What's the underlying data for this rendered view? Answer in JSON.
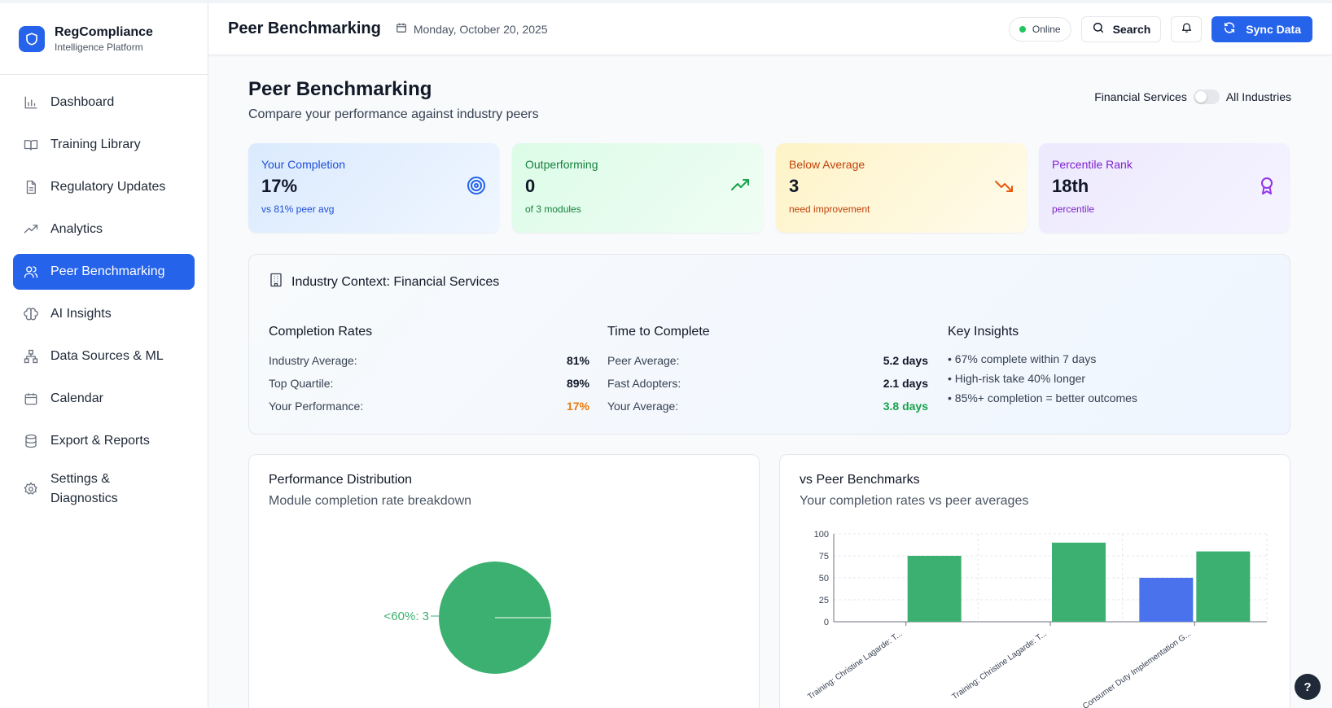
{
  "brand": {
    "title": "RegCompliance",
    "subtitle": "Intelligence Platform"
  },
  "sidebar": {
    "items": [
      {
        "label": "Dashboard",
        "icon": "bar-chart-icon"
      },
      {
        "label": "Training Library",
        "icon": "book-icon"
      },
      {
        "label": "Regulatory Updates",
        "icon": "document-icon"
      },
      {
        "label": "Analytics",
        "icon": "trend-icon"
      },
      {
        "label": "Peer Benchmarking",
        "icon": "users-icon",
        "active": true
      },
      {
        "label": "AI Insights",
        "icon": "brain-icon"
      },
      {
        "label": "Data Sources & ML",
        "icon": "network-icon"
      },
      {
        "label": "Calendar",
        "icon": "calendar-icon"
      },
      {
        "label": "Export & Reports",
        "icon": "database-icon"
      },
      {
        "label": "Settings & Diagnostics",
        "icon": "gear-icon"
      }
    ]
  },
  "header": {
    "title": "Peer Benchmarking",
    "date": "Monday, October 20, 2025",
    "status": "Online",
    "search_label": "Search",
    "sync_label": "Sync Data"
  },
  "page": {
    "title": "Peer Benchmarking",
    "subtitle": "Compare your performance against industry peers",
    "toggle_left": "Financial Services",
    "toggle_right": "All Industries"
  },
  "stats": [
    {
      "label": "Your Completion",
      "value": "17%",
      "note": "vs 81% peer avg",
      "icon": "target-icon"
    },
    {
      "label": "Outperforming",
      "value": "0",
      "note": "of 3 modules",
      "icon": "trending-up-icon"
    },
    {
      "label": "Below Average",
      "value": "3",
      "note": "need improvement",
      "icon": "trending-down-icon"
    },
    {
      "label": "Percentile Rank",
      "value": "18th",
      "note": "percentile",
      "icon": "award-icon"
    }
  ],
  "context": {
    "title": "Industry Context: Financial Services",
    "completion": {
      "heading": "Completion Rates",
      "rows": [
        {
          "label": "Industry Average:",
          "value": "81%"
        },
        {
          "label": "Top Quartile:",
          "value": "89%"
        },
        {
          "label": "Your Performance:",
          "value": "17%"
        }
      ]
    },
    "time": {
      "heading": "Time to Complete",
      "rows": [
        {
          "label": "Peer Average:",
          "value": "5.2 days"
        },
        {
          "label": "Fast Adopters:",
          "value": "2.1 days"
        },
        {
          "label": "Your Average:",
          "value": "3.8 days"
        }
      ]
    },
    "insights": {
      "heading": "Key Insights",
      "items": [
        "• 67% complete within 7 days",
        "• High-risk take 40% longer",
        "• 85%+ completion = better outcomes"
      ]
    }
  },
  "pie_card": {
    "title": "Performance Distribution",
    "subtitle": "Module completion rate breakdown"
  },
  "bar_card": {
    "title": "vs Peer Benchmarks",
    "subtitle": "Your completion rates vs peer averages"
  },
  "colors": {
    "accent": "#2563eb",
    "peer": "#3cb070",
    "yours": "#4a72ec"
  },
  "chart_data": [
    {
      "type": "pie",
      "slices": [
        {
          "label": "<60%",
          "value": 3,
          "display": "<60%: 3",
          "color": "#3cb070"
        }
      ]
    },
    {
      "type": "bar",
      "categories": [
        "Training: Christine Lagarde: T...",
        "Training: Christine Lagarde: T...",
        "Consumer Duty Implementation G..."
      ],
      "series": [
        {
          "values": [
            0,
            0,
            50
          ],
          "color": "#4a72ec"
        },
        {
          "values": [
            75,
            90,
            80
          ],
          "color": "#3cb070"
        }
      ],
      "ylim": [
        0,
        100
      ],
      "yticks": [
        "0",
        "25",
        "50",
        "75",
        "100"
      ],
      "grid": true
    }
  ],
  "help_label": "?"
}
